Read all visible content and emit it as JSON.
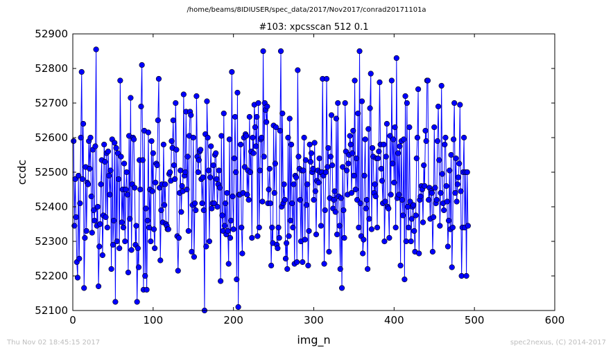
{
  "path_title": "/home/beams/8IDIUSER/spec_data/2017/Nov2017/conrad20171101a",
  "footer": {
    "timestamp": "Thu Nov 02 18:45:15 2017",
    "credit": "spec2nexus, (C) 2014-2017"
  },
  "chart_data": {
    "type": "line",
    "title": "#103: xpcsscan 512 0.1",
    "xlabel": "img_n",
    "ylabel": "ccdc",
    "xlim": [
      0,
      600
    ],
    "ylim": [
      52100,
      52900
    ],
    "xticks": [
      0,
      100,
      200,
      300,
      400,
      500,
      600
    ],
    "yticks": [
      52100,
      52200,
      52300,
      52400,
      52500,
      52600,
      52700,
      52800,
      52900
    ],
    "grid": false,
    "line_color": "#0000ff",
    "marker": "circle",
    "series": [
      {
        "x_start": 1,
        "x_step": 1,
        "values": [
          52590,
          52345,
          52480,
          52370,
          52240,
          52195,
          52490,
          52250,
          52410,
          52600,
          52790,
          52480,
          52640,
          52165,
          52310,
          52515,
          52330,
          52470,
          52465,
          52590,
          52510,
          52600,
          52430,
          52325,
          52565,
          52390,
          52360,
          52575,
          52855,
          52345,
          52400,
          52170,
          52285,
          52350,
          52465,
          52535,
          52260,
          52375,
          52580,
          52530,
          52370,
          52555,
          52340,
          52560,
          52490,
          52435,
          52505,
          52220,
          52595,
          52290,
          52360,
          52585,
          52125,
          52570,
          52300,
          52555,
          52480,
          52280,
          52765,
          52545,
          52355,
          52450,
          52340,
          52525,
          52300,
          52450,
          52500,
          52435,
          52210,
          52605,
          52365,
          52715,
          52275,
          52465,
          52600,
          52595,
          52455,
          52290,
          52345,
          52125,
          52280,
          52225,
          52535,
          52450,
          52690,
          52810,
          52535,
          52160,
          52620,
          52200,
          52395,
          52160,
          52360,
          52615,
          52340,
          52450,
          52300,
          52590,
          52445,
          52555,
          52335,
          52280,
          52470,
          52525,
          52520,
          52650,
          52770,
          52455,
          52245,
          52390,
          52465,
          52355,
          52580,
          52405,
          52465,
          52350,
          52345,
          52335,
          52335,
          52495,
          52500,
          52475,
          52590,
          52570,
          52650,
          52520,
          52480,
          52700,
          52565,
          52315,
          52215,
          52310,
          52440,
          52505,
          52385,
          52460,
          52445,
          52725,
          52490,
          52500,
          52675,
          52450,
          52545,
          52330,
          52605,
          52675,
          52665,
          52270,
          52405,
          52600,
          52255,
          52410,
          52390,
          52720,
          52545,
          52500,
          52535,
          52560,
          52565,
          52480,
          52410,
          52485,
          52390,
          52100,
          52610,
          52285,
          52705,
          52600,
          52505,
          52300,
          52485,
          52575,
          52395,
          52410,
          52520,
          52410,
          52550,
          52555,
          52480,
          52400,
          52465,
          52505,
          52455,
          52185,
          52605,
          52375,
          52330,
          52670,
          52345,
          52410,
          52320,
          52440,
          52330,
          52235,
          52595,
          52310,
          52360,
          52790,
          52430,
          52335,
          52540,
          52660,
          52500,
          52190,
          52730,
          52110,
          52435,
          52435,
          52580,
          52340,
          52265,
          52440,
          52600,
          52515,
          52610,
          52605,
          52435,
          52505,
          52420,
          52660,
          52500,
          52560,
          52310,
          52600,
          52555,
          52695,
          52630,
          52575,
          52660,
          52315,
          52700,
          52340,
          52505,
          52595,
          52600,
          52415,
          52850,
          52545,
          52700,
          52680,
          52645,
          52690,
          52410,
          52450,
          52510,
          52410,
          52230,
          52340,
          52295,
          52635,
          52440,
          52525,
          52630,
          52290,
          52280,
          52340,
          52310,
          52620,
          52850,
          52400,
          52670,
          52410,
          52465,
          52420,
          52250,
          52295,
          52220,
          52600,
          52315,
          52655,
          52360,
          52580,
          52410,
          52340,
          52465,
          52235,
          52490,
          52485,
          52240,
          52795,
          52545,
          52510,
          52420,
          52300,
          52505,
          52240,
          52505,
          52600,
          52305,
          52535,
          52405,
          52465,
          52230,
          52330,
          52580,
          52530,
          52555,
          52500,
          52510,
          52420,
          52585,
          52445,
          52320,
          52475,
          52505,
          52470,
          52540,
          52500,
          52345,
          52500,
          52770,
          52490,
          52235,
          52390,
          52500,
          52770,
          52515,
          52570,
          52270,
          52425,
          52545,
          52665,
          52520,
          52395,
          52420,
          52445,
          52385,
          52655,
          52320,
          52700,
          52430,
          52345,
          52220,
          52425,
          52165,
          52515,
          52390,
          52310,
          52700,
          52560,
          52505,
          52435,
          52525,
          52550,
          52605,
          52580,
          52440,
          52555,
          52620,
          52490,
          52765,
          52450,
          52540,
          52420,
          52670,
          52340,
          52850,
          52410,
          52315,
          52705,
          52265,
          52305,
          52490,
          52595,
          52395,
          52420,
          52220,
          52625,
          52365,
          52685,
          52785,
          52335,
          52570,
          52545,
          52440,
          52465,
          52430,
          52540,
          52340,
          52540,
          52560,
          52760,
          52580,
          52510,
          52475,
          52410,
          52580,
          52300,
          52415,
          52545,
          52640,
          52400,
          52395,
          52310,
          52605,
          52435,
          52765,
          52525,
          52595,
          52470,
          52630,
          52340,
          52830,
          52425,
          52555,
          52435,
          52575,
          52230,
          52590,
          52420,
          52375,
          52595,
          52190,
          52720,
          52300,
          52700,
          52400,
          52340,
          52630,
          52415,
          52300,
          52365,
          52400,
          52405,
          52330,
          52270,
          52375,
          52540,
          52600,
          52740,
          52265,
          52420,
          52430,
          52460,
          52450,
          52355,
          52520,
          52460,
          52620,
          52590,
          52765,
          52765,
          52420,
          52455,
          52365,
          52445,
          52440,
          52270,
          52370,
          52630,
          52455,
          52410,
          52420,
          52590,
          52690,
          52535,
          52345,
          52440,
          52750,
          52495,
          52410,
          52390,
          52580,
          52600,
          52460,
          52415,
          52285,
          52360,
          52505,
          52335,
          52550,
          52225,
          52340,
          52595,
          52700,
          52440,
          52540,
          52415,
          52465,
          52485,
          52525,
          52695,
          52445,
          52200,
          52340,
          52500,
          52600,
          52340,
          52500,
          52200,
          52500,
          52345
        ]
      }
    ]
  }
}
